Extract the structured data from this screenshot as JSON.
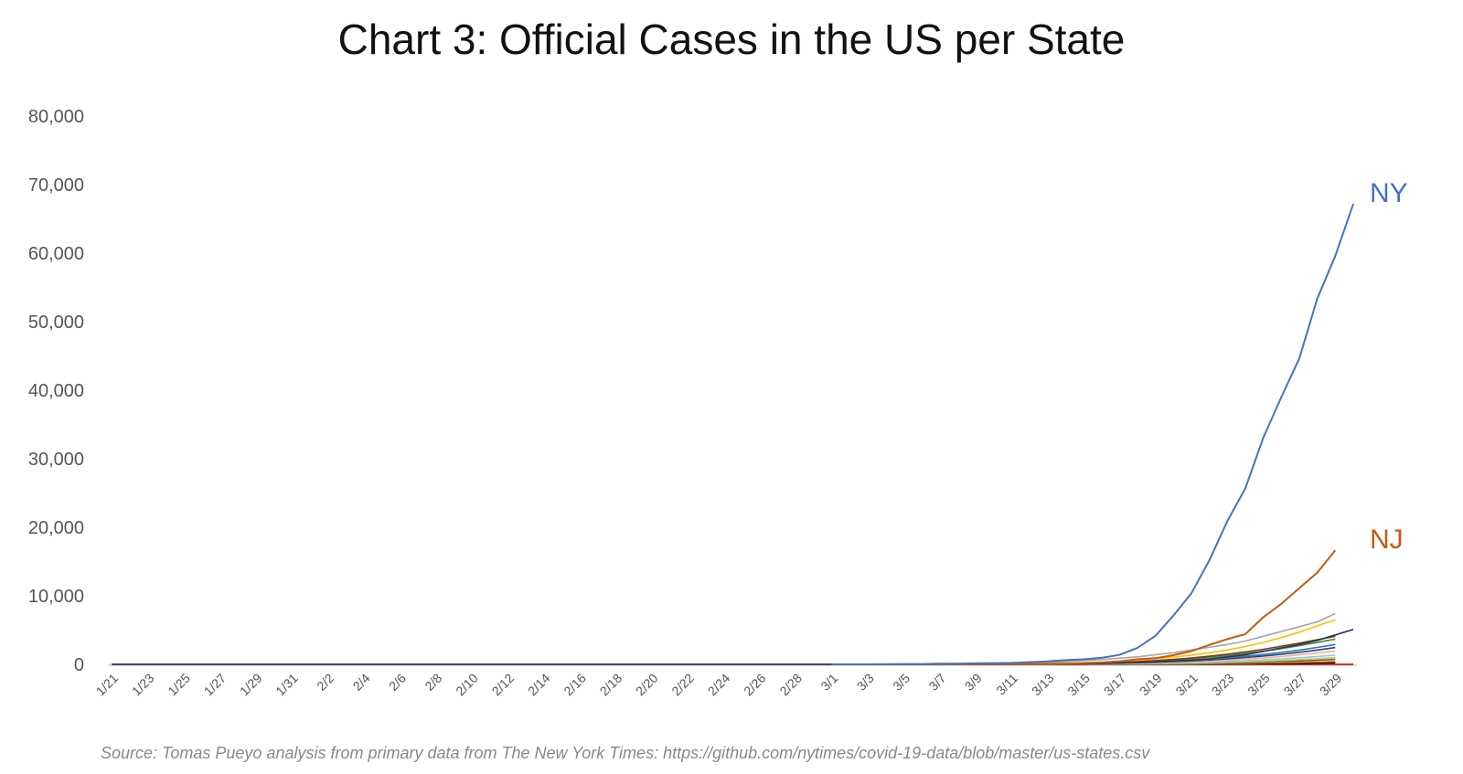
{
  "chart_data": {
    "type": "line",
    "title": "Chart 3: Official Cases in the US per State",
    "source": "Source: Tomas Pueyo analysis from primary data from The New York Times: https://github.com/nytimes/covid-19-data/blob/master/us-states.csv",
    "x_tick_labels": [
      "1/21",
      "1/23",
      "1/25",
      "1/27",
      "1/29",
      "1/31",
      "2/2",
      "2/4",
      "2/6",
      "2/8",
      "2/10",
      "2/12",
      "2/14",
      "2/16",
      "2/18",
      "2/20",
      "2/22",
      "2/24",
      "2/26",
      "2/28",
      "3/1",
      "3/3",
      "3/5",
      "3/7",
      "3/9",
      "3/11",
      "3/13",
      "3/15",
      "3/17",
      "3/19",
      "3/21",
      "3/23",
      "3/25",
      "3/27",
      "3/29"
    ],
    "x_start": "2020-01-21",
    "x_end": "2020-03-30",
    "y_ticks": [
      0,
      10000,
      20000,
      30000,
      40000,
      50000,
      60000,
      70000,
      80000
    ],
    "y_tick_labels": [
      "0",
      "10,000",
      "20,000",
      "30,000",
      "40,000",
      "50,000",
      "60,000",
      "70,000",
      "80,000"
    ],
    "ylim": [
      0,
      80000
    ],
    "grid": false,
    "legend": "none",
    "series": [
      {
        "name": "NY",
        "color": "#4472C4",
        "end_label": true,
        "start": "2020-03-01",
        "values": [
          1,
          1,
          2,
          11,
          22,
          44,
          89,
          106,
          142,
          173,
          217,
          326,
          421,
          610,
          732,
          950,
          1374,
          2382,
          4152,
          7102,
          10356,
          15168,
          20875,
          25665,
          33066,
          38987,
          44635,
          53363,
          59568,
          67174
        ]
      },
      {
        "name": "NJ",
        "color": "#C55A11",
        "end_label": true,
        "start": "2020-03-04",
        "values": [
          1,
          2,
          4,
          6,
          11,
          15,
          23,
          29,
          50,
          69,
          98,
          178,
          267,
          427,
          742,
          890,
          1327,
          1914,
          2844,
          3675,
          4402,
          6876,
          8825,
          11124,
          13386,
          16636
        ]
      },
      {
        "color": "#A5A5A5",
        "start": "2020-03-04",
        "values": [
          40,
          55,
          70,
          90,
          110,
          140,
          180,
          210,
          250,
          320,
          420,
          560,
          700,
          900,
          1100,
          1400,
          1700,
          2100,
          2500,
          2900,
          3400,
          4100,
          4800,
          5500,
          6200,
          7400
        ]
      },
      {
        "color": "#FFC000",
        "start": "2020-03-04",
        "values": [
          5,
          8,
          12,
          18,
          25,
          35,
          50,
          70,
          100,
          140,
          190,
          260,
          350,
          470,
          620,
          800,
          1050,
          1350,
          1700,
          2100,
          2600,
          3200,
          3900,
          4700,
          5600,
          6500
        ]
      },
      {
        "color": "#1F3864",
        "start": "2020-01-21",
        "values": [
          1,
          1,
          1,
          1,
          1,
          1,
          1,
          1,
          1,
          1,
          1,
          1,
          1,
          1,
          1,
          1,
          1,
          1,
          1,
          1,
          1,
          1,
          1,
          1,
          1,
          1,
          1,
          1,
          1,
          1,
          1,
          1,
          1,
          1,
          1,
          1,
          1,
          1,
          1,
          1,
          1,
          1,
          1,
          1,
          1,
          1,
          1,
          3,
          5,
          8,
          12,
          18,
          27,
          40,
          70,
          120,
          180,
          260,
          350,
          480,
          620,
          800,
          1100,
          1400,
          1900,
          2400,
          2900,
          3500,
          4300,
          5100
        ]
      },
      {
        "color": "#843C0C",
        "start": "2020-03-04",
        "values": [
          3,
          5,
          8,
          12,
          18,
          26,
          37,
          52,
          72,
          100,
          135,
          180,
          240,
          320,
          420,
          550,
          720,
          920,
          1180,
          1480,
          1820,
          2200,
          2640,
          3100,
          3600,
          4100
        ]
      },
      {
        "color": "#548235",
        "start": "2020-03-04",
        "values": [
          2,
          4,
          7,
          11,
          16,
          23,
          33,
          47,
          66,
          92,
          128,
          175,
          235,
          310,
          400,
          520,
          660,
          830,
          1040,
          1290,
          1580,
          1920,
          2300,
          2720,
          3180,
          3700
        ]
      },
      {
        "color": "#2E75B6",
        "start": "2020-03-04",
        "values": [
          2,
          3,
          5,
          8,
          12,
          17,
          24,
          34,
          48,
          67,
          92,
          125,
          168,
          222,
          290,
          375,
          480,
          610,
          770,
          960,
          1180,
          1440,
          1740,
          2080,
          2460,
          2900
        ]
      },
      {
        "color": "#264478",
        "start": "2020-03-04",
        "values": [
          1,
          2,
          4,
          6,
          9,
          13,
          19,
          27,
          38,
          53,
          73,
          100,
          135,
          180,
          238,
          310,
          400,
          510,
          645,
          805,
          995,
          1215,
          1470,
          1760,
          2085,
          2450
        ]
      },
      {
        "color": "#F4B183",
        "start": "2020-03-04",
        "values": [
          1,
          2,
          3,
          5,
          7,
          10,
          14,
          20,
          28,
          39,
          54,
          74,
          100,
          134,
          178,
          234,
          304,
          390,
          495,
          622,
          772,
          948,
          1152,
          1386,
          1652,
          1950
        ]
      },
      {
        "color": "#9DC3E6",
        "start": "2020-03-04",
        "values": [
          1,
          1,
          2,
          3,
          5,
          7,
          10,
          14,
          20,
          28,
          39,
          53,
          72,
          96,
          127,
          166,
          215,
          275,
          348,
          436,
          540,
          662,
          803,
          965,
          1149,
          1350
        ]
      },
      {
        "color": "#A9D18E",
        "start": "2020-03-04",
        "values": [
          1,
          1,
          2,
          3,
          4,
          6,
          8,
          11,
          15,
          21,
          29,
          39,
          52,
          69,
          91,
          119,
          154,
          197,
          250,
          313,
          388,
          476,
          578,
          695,
          829,
          980
        ]
      },
      {
        "color": "#7F6000",
        "start": "2020-03-04",
        "values": [
          1,
          1,
          1,
          2,
          3,
          4,
          6,
          8,
          11,
          15,
          20,
          27,
          36,
          48,
          63,
          82,
          106,
          136,
          173,
          218,
          272,
          336,
          411,
          498,
          598,
          720
        ]
      },
      {
        "color": "#ED7D31",
        "start": "2020-03-04",
        "values": [
          1,
          1,
          1,
          1,
          2,
          3,
          4,
          5,
          7,
          9,
          12,
          16,
          21,
          28,
          37,
          48,
          62,
          80,
          102,
          129,
          161,
          199,
          244,
          296,
          356,
          430
        ]
      },
      {
        "color": "#000000",
        "start": "2020-03-04",
        "values": [
          0,
          0,
          1,
          1,
          1,
          2,
          2,
          3,
          4,
          5,
          7,
          9,
          12,
          16,
          21,
          27,
          35,
          45,
          57,
          72,
          90,
          111,
          136,
          165,
          198,
          240
        ]
      },
      {
        "color": "#C00000",
        "start": "2020-01-21",
        "values": [
          0,
          0,
          0,
          0,
          1,
          1,
          1,
          1,
          1,
          1,
          1,
          1,
          1,
          1,
          1,
          1,
          1,
          1,
          1,
          1,
          1,
          1,
          1,
          1,
          1,
          1,
          1,
          1,
          2,
          2,
          2,
          2,
          2,
          2,
          2,
          2,
          2,
          2,
          2,
          2,
          2,
          2,
          2,
          2,
          2,
          2,
          2,
          2,
          2,
          2,
          2,
          2,
          2,
          2,
          2,
          2,
          2,
          2,
          2,
          2,
          2,
          2,
          2,
          2,
          2,
          2,
          2,
          2,
          2,
          2
        ]
      }
    ]
  }
}
